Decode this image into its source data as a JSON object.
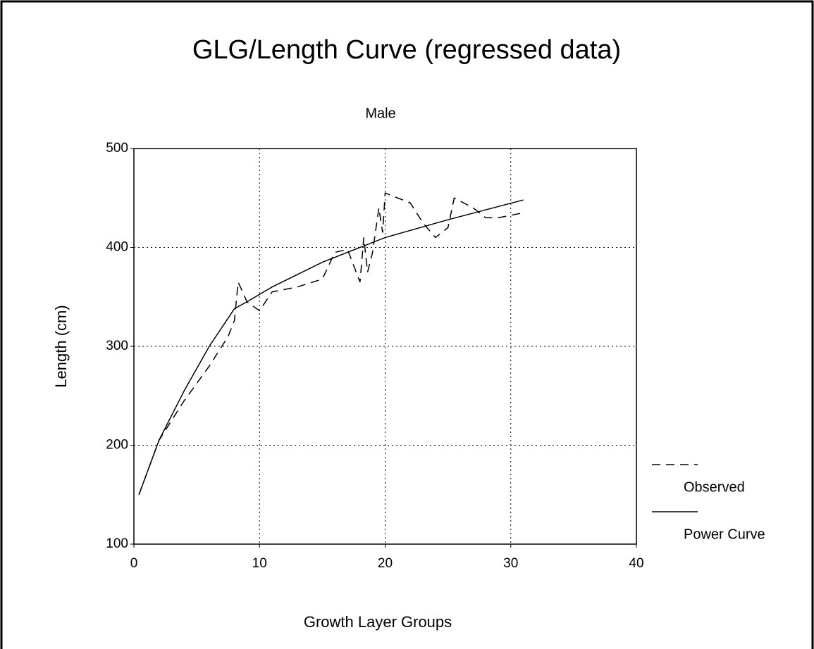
{
  "chart_data": {
    "type": "line",
    "title": "GLG/Length Curve (regressed data)",
    "subtitle": "Male",
    "x_label": "Growth Layer Groups",
    "y_label": "Length (cm)",
    "xlim": [
      0,
      40
    ],
    "xticks": [
      0,
      10,
      20,
      30,
      40
    ],
    "ylim": [
      100,
      500
    ],
    "yticks": [
      100,
      200,
      300,
      400,
      500
    ],
    "grid": true,
    "grid_style": "dotted",
    "legend": "right",
    "series": [
      {
        "name": "Observed",
        "color": "#000000",
        "dash": true,
        "x": [
          0.4,
          2,
          4,
          6,
          7.5,
          8,
          8.3,
          9,
          10,
          11,
          13,
          15,
          16,
          17,
          18,
          18.3,
          18.6,
          19,
          19.5,
          19.8,
          20,
          21,
          22,
          23,
          24,
          25,
          25.5,
          27,
          28,
          29,
          31
        ],
        "values": [
          150,
          205,
          245,
          280,
          310,
          326,
          365,
          345,
          336,
          355,
          360,
          368,
          395,
          398,
          365,
          410,
          375,
          395,
          440,
          415,
          455,
          450,
          445,
          425,
          410,
          420,
          450,
          440,
          430,
          430,
          435
        ]
      },
      {
        "name": "Power Curve",
        "color": "#000000",
        "dash": false,
        "x": [
          0.4,
          2,
          4,
          6,
          8,
          9,
          11,
          15,
          20,
          25,
          31
        ],
        "values": [
          150,
          205,
          255,
          300,
          338,
          345,
          360,
          385,
          410,
          428,
          448
        ]
      }
    ]
  }
}
